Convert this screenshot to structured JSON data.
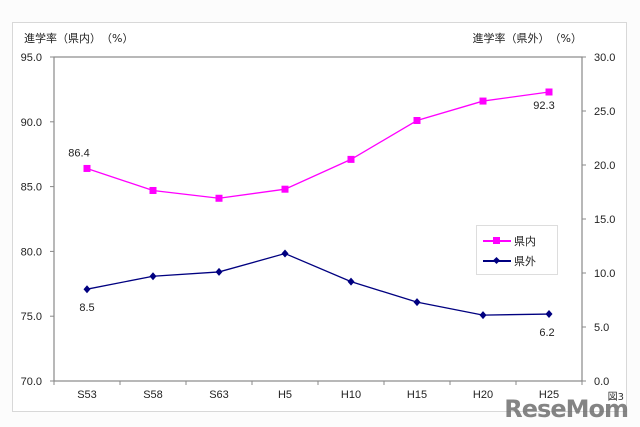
{
  "chart_data": {
    "type": "line",
    "title": "",
    "categories": [
      "S53",
      "S58",
      "S63",
      "H5",
      "H10",
      "H15",
      "H20",
      "H25"
    ],
    "xlabel": "",
    "ylabel": "進学率（県内）（%）",
    "ylabel_right": "進学率（県外）（%）",
    "ylim": [
      70.0,
      95.0
    ],
    "ylim_right": [
      0.0,
      30.0
    ],
    "yticks": [
      "95.0",
      "90.0",
      "85.0",
      "80.0",
      "75.0",
      "70.0"
    ],
    "yticks_right": [
      "30.0",
      "25.0",
      "20.0",
      "15.0",
      "10.0",
      "5.0",
      "0.0"
    ],
    "grid": false,
    "legend_position": "right-center inside plot",
    "series": [
      {
        "name": "県内",
        "axis": "left",
        "color": "#ff00ff",
        "marker": "square",
        "values": [
          86.4,
          84.7,
          84.1,
          84.8,
          87.1,
          90.1,
          91.6,
          92.3
        ],
        "annotations": [
          {
            "index": 0,
            "text": "86.4"
          },
          {
            "index": 7,
            "text": "92.3"
          }
        ]
      },
      {
        "name": "県外",
        "axis": "right",
        "color": "#000080",
        "marker": "diamond",
        "values": [
          8.5,
          9.7,
          10.1,
          11.8,
          9.2,
          7.3,
          6.1,
          6.2
        ],
        "annotations": [
          {
            "index": 0,
            "text": "8.5"
          },
          {
            "index": 7,
            "text": "6.2"
          }
        ]
      }
    ]
  },
  "labels": {
    "left_axis_title": "進学率（県内）　（%）",
    "right_axis_title": "進学率（県外）　（%）",
    "legend_series_1": "県内",
    "legend_series_2": "県外",
    "figure_label": "図3",
    "watermark": "ReseMom"
  }
}
